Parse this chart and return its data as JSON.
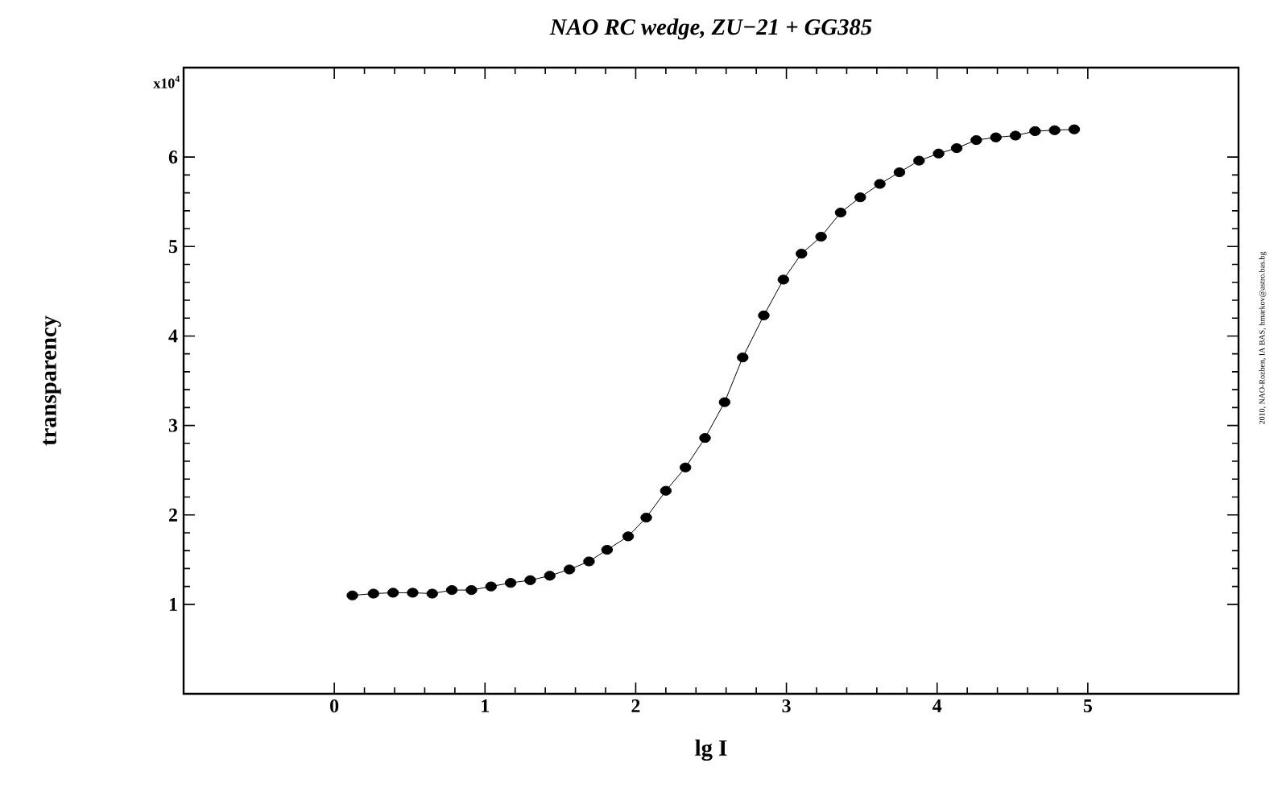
{
  "chart_data": {
    "type": "line",
    "title": "NAO RC wedge, ZU−21 + GG385",
    "xlabel": "lg I",
    "ylabel": "transparency",
    "annotations": [
      "x10$^{4}$",
      "2010, NAO-Rozhen, IA BAS, hmarkov@astro.bas.bg"
    ],
    "x": [
      0.12,
      0.26,
      0.39,
      0.52,
      0.65,
      0.78,
      0.91,
      1.04,
      1.17,
      1.3,
      1.43,
      1.56,
      1.69,
      1.81,
      1.95,
      2.07,
      2.2,
      2.33,
      2.46,
      2.59,
      2.71,
      2.85,
      2.98,
      3.1,
      3.23,
      3.36,
      3.49,
      3.62,
      3.75,
      3.88,
      4.01,
      4.13,
      4.26,
      4.39,
      4.52,
      4.65,
      4.78,
      4.91
    ],
    "series": [
      {
        "color": "#000000",
        "values": [
          1.1,
          1.12,
          1.13,
          1.13,
          1.12,
          1.16,
          1.16,
          1.2,
          1.24,
          1.27,
          1.32,
          1.39,
          1.48,
          1.61,
          1.76,
          1.97,
          2.27,
          2.53,
          2.86,
          3.26,
          3.76,
          4.23,
          4.63,
          4.92,
          5.11,
          5.38,
          5.55,
          5.7,
          5.83,
          5.96,
          6.04,
          6.1,
          6.19,
          6.22,
          6.24,
          6.29,
          6.3,
          6.31
        ]
      }
    ],
    "xlim": [
      -1,
      6
    ],
    "xticks": [
      0,
      1,
      2,
      3,
      4,
      5
    ],
    "ylim": [
      0,
      7
    ],
    "yticks": [
      1,
      2,
      3,
      4,
      5,
      6
    ],
    "grid": false,
    "marker": "circle",
    "line_style": "solid"
  }
}
